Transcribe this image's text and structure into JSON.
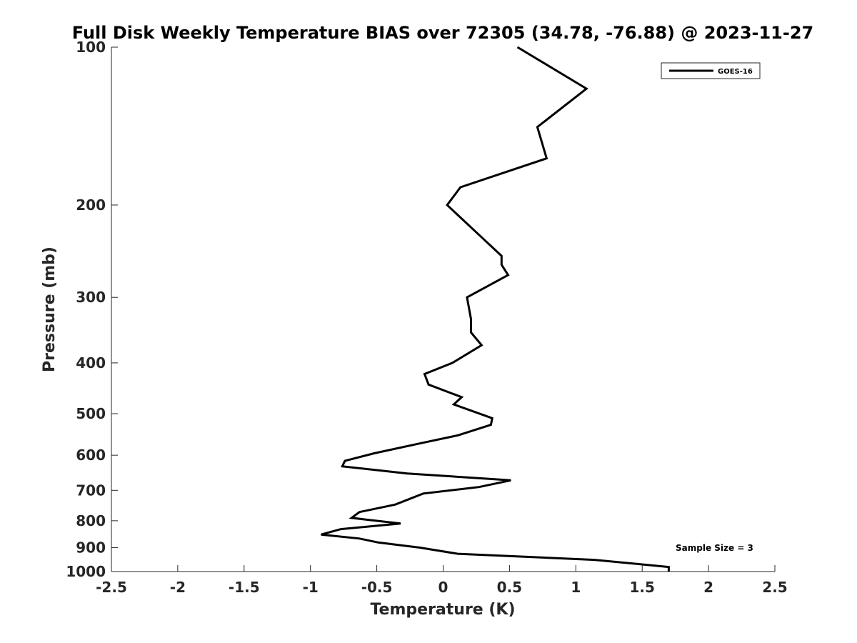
{
  "chart_data": {
    "type": "line",
    "title": "Full Disk Weekly Temperature BIAS over 72305 (34.78, -76.88) @ 2023-11-27",
    "xlabel": "Temperature (K)",
    "ylabel": "Pressure (mb)",
    "xlim": [
      -2.5,
      2.5
    ],
    "ylim": [
      100,
      1000
    ],
    "y_scale": "log",
    "y_reversed": true,
    "xticks": [
      -2.5,
      -2,
      -1.5,
      -1,
      -0.5,
      0,
      0.5,
      1,
      1.5,
      2,
      2.5
    ],
    "xtick_labels": [
      "-2.5",
      "-2",
      "-1.5",
      "-1",
      "-0.5",
      "0",
      "0.5",
      "1",
      "1.5",
      "2",
      "2.5"
    ],
    "yticks": [
      100,
      200,
      300,
      400,
      500,
      600,
      700,
      800,
      900,
      1000
    ],
    "ytick_labels": [
      "100",
      "200",
      "300",
      "400",
      "500",
      "600",
      "700",
      "800",
      "900",
      "1000"
    ],
    "grid": false,
    "legend_position": "top-right",
    "annotation": "Sample Size = 3",
    "series": [
      {
        "name": "GOES-16",
        "color": "#000000",
        "x": [
          0.56,
          1.08,
          0.71,
          0.78,
          0.13,
          0.03,
          0.27,
          0.44,
          0.44,
          0.49,
          0.18,
          0.21,
          0.21,
          0.29,
          0.07,
          -0.14,
          -0.11,
          0.14,
          0.08,
          0.37,
          0.36,
          0.11,
          -0.18,
          -0.52,
          -0.74,
          -0.76,
          -0.27,
          0.51,
          0.27,
          -0.15,
          -0.36,
          -0.63,
          -0.69,
          -0.32,
          -0.77,
          -0.92,
          -0.63,
          -0.49,
          -0.18,
          0.11,
          1.14,
          1.7,
          1.7
        ],
        "y": [
          100,
          120,
          142,
          163,
          185,
          200,
          228,
          250,
          260,
          272,
          300,
          330,
          350,
          370,
          400,
          420,
          440,
          465,
          480,
          510,
          525,
          550,
          570,
          595,
          615,
          630,
          650,
          670,
          690,
          710,
          745,
          770,
          790,
          810,
          830,
          850,
          865,
          880,
          900,
          925,
          950,
          980,
          1000
        ]
      }
    ]
  }
}
